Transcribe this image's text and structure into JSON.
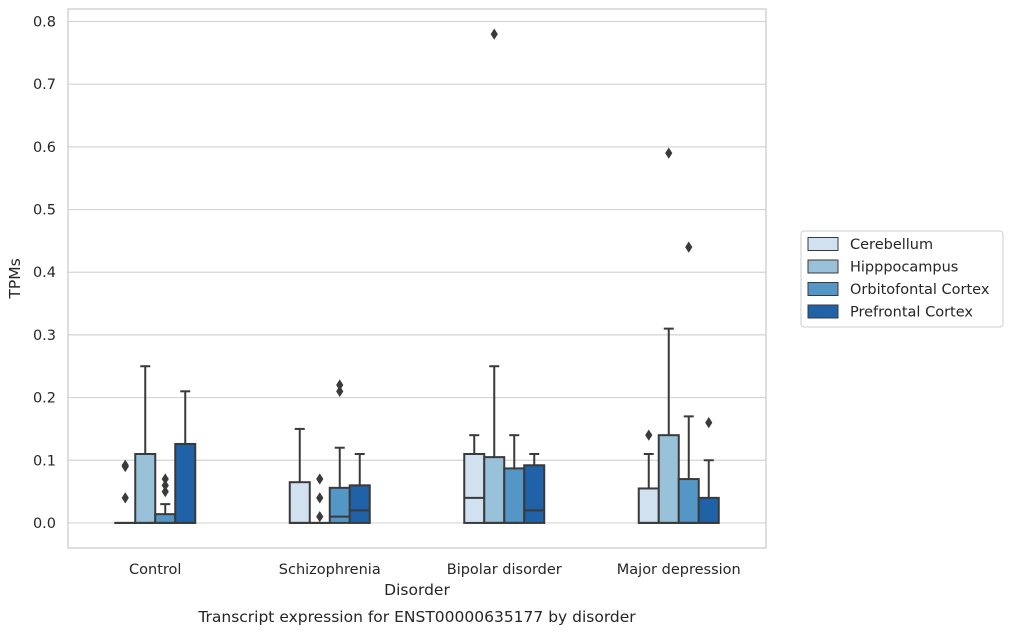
{
  "chart_data": {
    "type": "boxplot",
    "title": "",
    "caption": "Transcript expression for ENST00000635177 by disorder",
    "xlabel": "Disorder",
    "ylabel": "TPMs",
    "ylim": [
      -0.04,
      0.82
    ],
    "yticks": [
      "0.0",
      "0.1",
      "0.2",
      "0.3",
      "0.4",
      "0.5",
      "0.6",
      "0.7",
      "0.8"
    ],
    "grid": "horizontal",
    "legend_position": "right",
    "categories": [
      "Control",
      "Schizophrenia",
      "Bipolar disorder",
      "Major depression"
    ],
    "series": [
      {
        "name": "Cerebellum",
        "color": "#d1e1f0",
        "boxes": [
          {
            "q1": 0.0,
            "median": 0.0,
            "q3": 0.0,
            "whisker_low": 0.0,
            "whisker_high": 0.0,
            "outliers": [
              0.04,
              0.09,
              0.092
            ]
          },
          {
            "q1": 0.0,
            "median": 0.0,
            "q3": 0.065,
            "whisker_low": 0.0,
            "whisker_high": 0.15,
            "outliers": []
          },
          {
            "q1": 0.0,
            "median": 0.04,
            "q3": 0.11,
            "whisker_low": 0.0,
            "whisker_high": 0.14,
            "outliers": []
          },
          {
            "q1": 0.0,
            "median": 0.0,
            "q3": 0.055,
            "whisker_low": 0.0,
            "whisker_high": 0.11,
            "outliers": [
              0.14
            ]
          }
        ]
      },
      {
        "name": "Hipppocampus",
        "color": "#9ac1da",
        "boxes": [
          {
            "q1": 0.0,
            "median": 0.0,
            "q3": 0.11,
            "whisker_low": 0.0,
            "whisker_high": 0.25,
            "outliers": []
          },
          {
            "q1": 0.0,
            "median": 0.0,
            "q3": 0.0,
            "whisker_low": 0.0,
            "whisker_high": 0.0,
            "outliers": [
              0.01,
              0.04,
              0.07
            ]
          },
          {
            "q1": 0.0,
            "median": 0.0,
            "q3": 0.105,
            "whisker_low": 0.0,
            "whisker_high": 0.25,
            "outliers": [
              0.78
            ]
          },
          {
            "q1": 0.0,
            "median": 0.0,
            "q3": 0.14,
            "whisker_low": 0.0,
            "whisker_high": 0.31,
            "outliers": [
              0.59
            ]
          }
        ]
      },
      {
        "name": "Orbitofontal Cortex",
        "color": "#5496c5",
        "boxes": [
          {
            "q1": 0.0,
            "median": 0.0,
            "q3": 0.014,
            "whisker_low": 0.0,
            "whisker_high": 0.03,
            "outliers": [
              0.05,
              0.06,
              0.07
            ]
          },
          {
            "q1": 0.0,
            "median": 0.01,
            "q3": 0.056,
            "whisker_low": 0.0,
            "whisker_high": 0.12,
            "outliers": [
              0.21,
              0.22
            ]
          },
          {
            "q1": 0.0,
            "median": 0.0,
            "q3": 0.087,
            "whisker_low": 0.0,
            "whisker_high": 0.14,
            "outliers": []
          },
          {
            "q1": 0.0,
            "median": 0.0,
            "q3": 0.07,
            "whisker_low": 0.0,
            "whisker_high": 0.17,
            "outliers": [
              0.44
            ]
          }
        ]
      },
      {
        "name": "Prefrontal Cortex",
        "color": "#1f62a8",
        "boxes": [
          {
            "q1": 0.0,
            "median": 0.0,
            "q3": 0.126,
            "whisker_low": 0.0,
            "whisker_high": 0.21,
            "outliers": []
          },
          {
            "q1": 0.0,
            "median": 0.02,
            "q3": 0.06,
            "whisker_low": 0.0,
            "whisker_high": 0.11,
            "outliers": []
          },
          {
            "q1": 0.0,
            "median": 0.02,
            "q3": 0.092,
            "whisker_low": 0.0,
            "whisker_high": 0.11,
            "outliers": []
          },
          {
            "q1": 0.0,
            "median": 0.0,
            "q3": 0.04,
            "whisker_low": 0.0,
            "whisker_high": 0.1,
            "outliers": [
              0.16
            ]
          }
        ]
      }
    ]
  }
}
